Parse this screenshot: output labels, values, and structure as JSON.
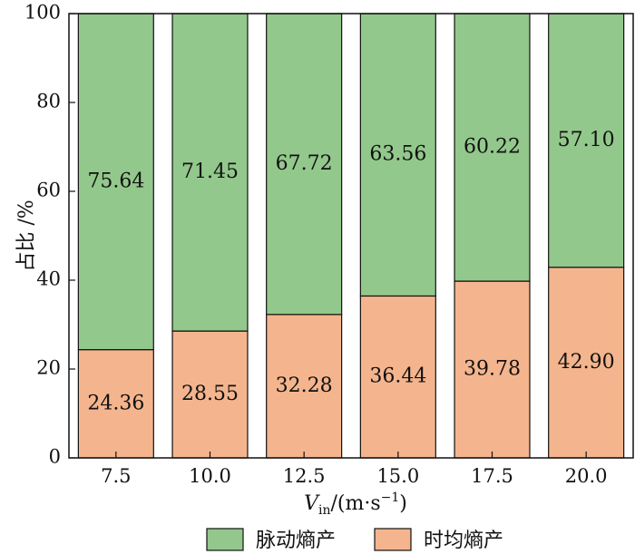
{
  "chart_data": {
    "type": "bar",
    "stacked": true,
    "categories": [
      "7.5",
      "10.0",
      "12.5",
      "15.0",
      "17.5",
      "20.0"
    ],
    "series": [
      {
        "name": "时均熵产",
        "values": [
          24.36,
          28.55,
          32.28,
          36.44,
          39.78,
          42.9
        ],
        "labels": [
          "24.36",
          "28.55",
          "32.28",
          "36.44",
          "39.78",
          "42.90"
        ],
        "color": "#f4b58e"
      },
      {
        "name": "脉动熵产",
        "values": [
          75.64,
          71.45,
          67.72,
          63.56,
          60.22,
          57.1
        ],
        "labels": [
          "75.64",
          "71.45",
          "67.72",
          "63.56",
          "60.22",
          "57.10"
        ],
        "color": "#93c88c"
      }
    ],
    "ylabel": "占比 /%",
    "xlabel": {
      "symbol": "V",
      "subscript": "in",
      "unit_prefix": "/(m·s",
      "superscript": "−1",
      "unit_suffix": ")"
    },
    "ylim": [
      0,
      100
    ],
    "yticks": [
      "0",
      "20",
      "40",
      "60",
      "80",
      "100"
    ],
    "legend_position": "bottom",
    "grid": false
  }
}
